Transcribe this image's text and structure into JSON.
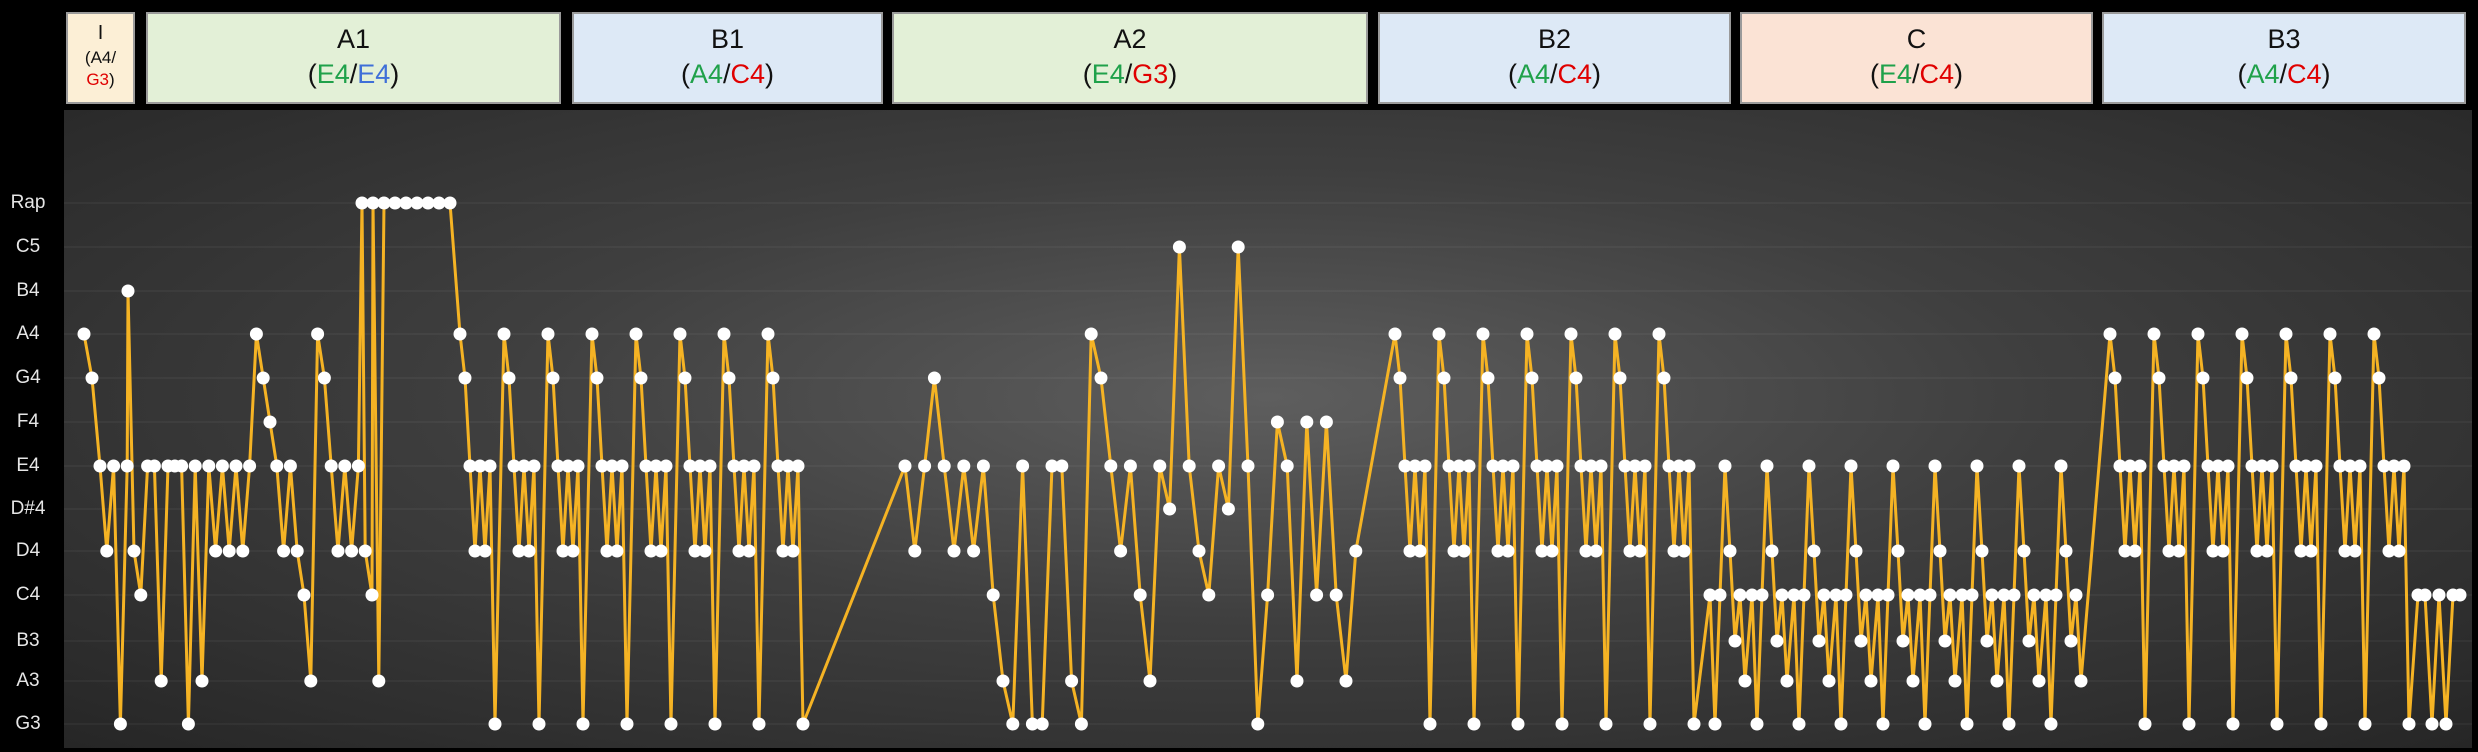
{
  "sections": [
    {
      "name": "I",
      "key1": "A4/",
      "key2": "G3",
      "color": "#fcefd6",
      "key2_color": "#e00000"
    },
    {
      "name": "A1",
      "key1": "E4",
      "key2": "E4",
      "color": "#e3f0d7",
      "key2_color": "#3f6fd8"
    },
    {
      "name": "B1",
      "key1": "A4",
      "key2": "C4",
      "color": "#dde9f6",
      "key2_color": "#e00000"
    },
    {
      "name": "A2",
      "key1": "E4",
      "key2": "G3",
      "color": "#e3f0d7",
      "key2_color": "#e00000"
    },
    {
      "name": "B2",
      "key1": "A4",
      "key2": "C4",
      "color": "#dde9f6",
      "key2_color": "#e00000"
    },
    {
      "name": "C",
      "key1": "E4",
      "key2": "C4",
      "color": "#fbe3d5",
      "key2_color": "#e00000"
    },
    {
      "name": "B3",
      "key1": "A4",
      "key2": "C4",
      "color": "#dde9f6",
      "key2_color": "#e00000"
    }
  ],
  "chart_data": {
    "type": "line",
    "y_categories": [
      "G3",
      "A3",
      "B3",
      "C4",
      "D4",
      "D#4",
      "E4",
      "F4",
      "G4",
      "A4",
      "B4",
      "C5",
      "Rap"
    ],
    "line_color": "#f5b324",
    "marker_color": "#ffffff",
    "grid": true,
    "x": [],
    "y": []
  }
}
